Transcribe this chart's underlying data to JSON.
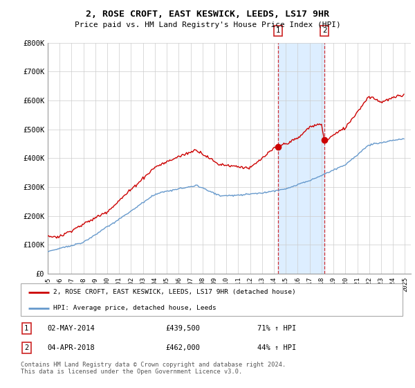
{
  "title": "2, ROSE CROFT, EAST KESWICK, LEEDS, LS17 9HR",
  "subtitle": "Price paid vs. HM Land Registry's House Price Index (HPI)",
  "legend_house": "2, ROSE CROFT, EAST KESWICK, LEEDS, LS17 9HR (detached house)",
  "legend_hpi": "HPI: Average price, detached house, Leeds",
  "ylim": [
    0,
    800000
  ],
  "yticks": [
    0,
    100000,
    200000,
    300000,
    400000,
    500000,
    600000,
    700000,
    800000
  ],
  "ytick_labels": [
    "£0",
    "£100K",
    "£200K",
    "£300K",
    "£400K",
    "£500K",
    "£600K",
    "£700K",
    "£800K"
  ],
  "t1_year": 2014.33,
  "t1_price": 439500,
  "t1_date": "02-MAY-2014",
  "t1_hpi": "71% ↑ HPI",
  "t2_year": 2018.25,
  "t2_price": 462000,
  "t2_date": "04-APR-2018",
  "t2_hpi": "44% ↑ HPI",
  "house_color": "#cc0000",
  "hpi_color": "#6699cc",
  "shade_color": "#ddeeff",
  "grid_color": "#cccccc",
  "legend_house_label": "2, ROSE CROFT, EAST KESWICK, LEEDS, LS17 9HR (detached house)",
  "legend_hpi_label": "HPI: Average price, detached house, Leeds",
  "note1_price": "£439,500",
  "note2_price": "£462,000",
  "footer": "Contains HM Land Registry data © Crown copyright and database right 2024.\nThis data is licensed under the Open Government Licence v3.0."
}
